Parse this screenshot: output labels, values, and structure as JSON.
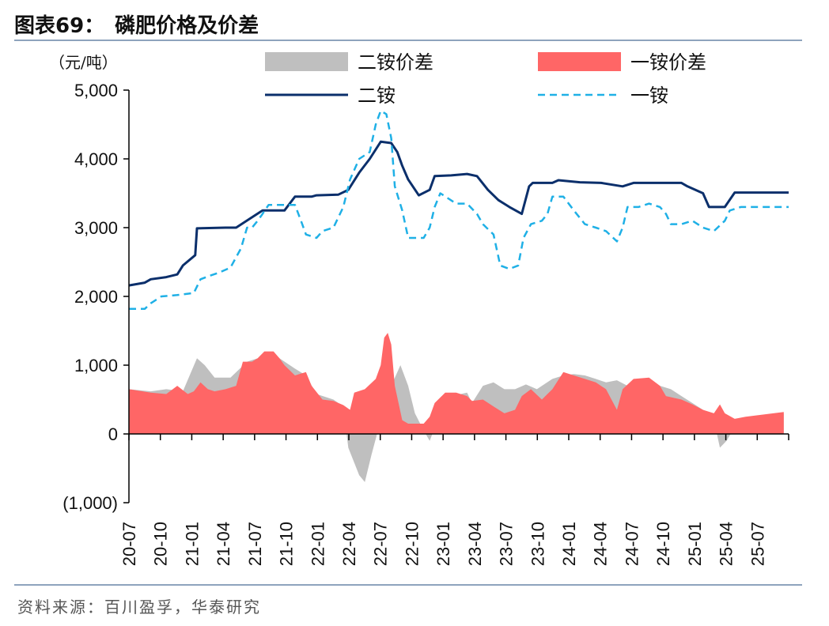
{
  "figure": {
    "title": "图表69：　磷肥价格及价差",
    "source": "资料来源：百川盈孚，华泰研究"
  },
  "chart_data": {
    "type": "line",
    "ylabel": "（元/吨）",
    "ylim": [
      -1000,
      5000
    ],
    "yticks": [
      5000,
      4000,
      3000,
      2000,
      1000,
      0,
      -1000
    ],
    "ytick_labels": [
      "5,000",
      "4,000",
      "3,000",
      "2,000",
      "1,000",
      "0",
      "(1,000)"
    ],
    "x_tick_labels": [
      "20-07",
      "20-10",
      "21-01",
      "21-04",
      "21-07",
      "21-10",
      "22-01",
      "22-04",
      "22-07",
      "22-10",
      "23-01",
      "23-04",
      "23-07",
      "23-10",
      "24-01",
      "24-04",
      "24-07",
      "24-10",
      "25-01",
      "25-04",
      "25-07"
    ],
    "x_start": "2020-07-01",
    "x_end": "2025-08-15",
    "legend_position": "top",
    "series": [
      {
        "name": "二铵价差",
        "kind": "area",
        "color": "#bfbfbf",
        "points": [
          [
            "2020-07-01",
            650
          ],
          [
            "2020-09-01",
            620
          ],
          [
            "2020-10-15",
            650
          ],
          [
            "2020-12-01",
            620
          ],
          [
            "2021-01-10",
            1100
          ],
          [
            "2021-02-01",
            1000
          ],
          [
            "2021-03-01",
            820
          ],
          [
            "2021-04-15",
            820
          ],
          [
            "2021-06-01",
            1050
          ],
          [
            "2021-08-01",
            1150
          ],
          [
            "2021-09-01",
            1100
          ],
          [
            "2021-10-15",
            950
          ],
          [
            "2021-11-15",
            850
          ],
          [
            "2021-12-15",
            580
          ],
          [
            "2022-02-01",
            500
          ],
          [
            "2022-03-01",
            400
          ],
          [
            "2022-03-15",
            -200
          ],
          [
            "2022-04-15",
            -600
          ],
          [
            "2022-05-01",
            -700
          ],
          [
            "2022-05-20",
            -300
          ],
          [
            "2022-06-15",
            200
          ],
          [
            "2022-07-15",
            700
          ],
          [
            "2022-08-10",
            1000
          ],
          [
            "2022-09-01",
            700
          ],
          [
            "2022-09-20",
            300
          ],
          [
            "2022-10-15",
            50
          ],
          [
            "2022-11-01",
            -100
          ],
          [
            "2022-12-01",
            300
          ],
          [
            "2023-01-01",
            550
          ],
          [
            "2023-02-15",
            600
          ],
          [
            "2023-03-01",
            450
          ],
          [
            "2023-04-01",
            700
          ],
          [
            "2023-05-01",
            750
          ],
          [
            "2023-06-01",
            650
          ],
          [
            "2023-07-01",
            650
          ],
          [
            "2023-08-01",
            720
          ],
          [
            "2023-09-01",
            650
          ],
          [
            "2023-10-15",
            800
          ],
          [
            "2023-11-15",
            850
          ],
          [
            "2023-12-15",
            870
          ],
          [
            "2024-01-15",
            850
          ],
          [
            "2024-02-15",
            800
          ],
          [
            "2024-03-15",
            750
          ],
          [
            "2024-04-15",
            780
          ],
          [
            "2024-05-15",
            700
          ],
          [
            "2024-07-01",
            780
          ],
          [
            "2024-08-15",
            700
          ],
          [
            "2024-09-15",
            650
          ],
          [
            "2024-10-15",
            550
          ],
          [
            "2024-11-15",
            450
          ],
          [
            "2024-12-15",
            350
          ],
          [
            "2025-01-15",
            200
          ],
          [
            "2025-02-01",
            -200
          ],
          [
            "2025-02-20",
            -100
          ],
          [
            "2025-03-15",
            100
          ],
          [
            "2025-04-15",
            150
          ],
          [
            "2025-06-01",
            250
          ],
          [
            "2025-08-01",
            300
          ]
        ]
      },
      {
        "name": "一铵价差",
        "kind": "area",
        "color": "#ff6666",
        "points": [
          [
            "2020-07-01",
            650
          ],
          [
            "2020-09-01",
            600
          ],
          [
            "2020-10-15",
            580
          ],
          [
            "2020-11-15",
            700
          ],
          [
            "2020-12-15",
            580
          ],
          [
            "2021-01-01",
            620
          ],
          [
            "2021-01-20",
            750
          ],
          [
            "2021-02-10",
            650
          ],
          [
            "2021-03-01",
            620
          ],
          [
            "2021-04-01",
            650
          ],
          [
            "2021-05-01",
            700
          ],
          [
            "2021-05-20",
            1050
          ],
          [
            "2021-06-15",
            1050
          ],
          [
            "2021-07-01",
            1100
          ],
          [
            "2021-07-20",
            1200
          ],
          [
            "2021-08-15",
            1200
          ],
          [
            "2021-09-01",
            1100
          ],
          [
            "2021-09-15",
            1000
          ],
          [
            "2021-10-15",
            850
          ],
          [
            "2021-11-15",
            900
          ],
          [
            "2021-12-01",
            700
          ],
          [
            "2022-01-01",
            500
          ],
          [
            "2022-02-01",
            480
          ],
          [
            "2022-03-01",
            420
          ],
          [
            "2022-03-20",
            350
          ],
          [
            "2022-04-01",
            600
          ],
          [
            "2022-05-01",
            650
          ],
          [
            "2022-06-01",
            800
          ],
          [
            "2022-06-15",
            1000
          ],
          [
            "2022-06-25",
            1400
          ],
          [
            "2022-07-05",
            1470
          ],
          [
            "2022-07-15",
            1300
          ],
          [
            "2022-07-25",
            700
          ],
          [
            "2022-08-15",
            200
          ],
          [
            "2022-09-01",
            150
          ],
          [
            "2022-10-15",
            150
          ],
          [
            "2022-11-01",
            250
          ],
          [
            "2022-11-15",
            450
          ],
          [
            "2022-12-15",
            600
          ],
          [
            "2023-01-15",
            600
          ],
          [
            "2023-02-15",
            550
          ],
          [
            "2023-03-01",
            480
          ],
          [
            "2023-04-01",
            500
          ],
          [
            "2023-05-01",
            400
          ],
          [
            "2023-06-01",
            300
          ],
          [
            "2023-07-01",
            350
          ],
          [
            "2023-07-20",
            550
          ],
          [
            "2023-08-15",
            650
          ],
          [
            "2023-09-15",
            500
          ],
          [
            "2023-10-15",
            650
          ],
          [
            "2023-11-15",
            900
          ],
          [
            "2023-12-15",
            850
          ],
          [
            "2024-01-15",
            800
          ],
          [
            "2024-02-15",
            750
          ],
          [
            "2024-03-15",
            650
          ],
          [
            "2024-04-15",
            350
          ],
          [
            "2024-05-01",
            650
          ],
          [
            "2024-06-01",
            800
          ],
          [
            "2024-07-15",
            820
          ],
          [
            "2024-08-15",
            700
          ],
          [
            "2024-09-01",
            550
          ],
          [
            "2024-10-15",
            500
          ],
          [
            "2024-11-15",
            430
          ],
          [
            "2024-12-15",
            350
          ],
          [
            "2025-01-15",
            300
          ],
          [
            "2025-02-01",
            430
          ],
          [
            "2025-02-15",
            300
          ],
          [
            "2025-03-15",
            220
          ],
          [
            "2025-04-15",
            250
          ],
          [
            "2025-06-01",
            280
          ],
          [
            "2025-08-01",
            320
          ]
        ]
      },
      {
        "name": "二铵",
        "kind": "line",
        "color": "#0b2f6b",
        "points": [
          [
            "2020-07-01",
            2160
          ],
          [
            "2020-08-15",
            2200
          ],
          [
            "2020-09-01",
            2250
          ],
          [
            "2020-10-15",
            2280
          ],
          [
            "2020-11-15",
            2320
          ],
          [
            "2020-12-01",
            2450
          ],
          [
            "2021-01-05",
            2600
          ],
          [
            "2021-01-10",
            2990
          ],
          [
            "2021-04-01",
            3000
          ],
          [
            "2021-05-01",
            3000
          ],
          [
            "2021-06-15",
            3150
          ],
          [
            "2021-07-15",
            3250
          ],
          [
            "2021-09-15",
            3250
          ],
          [
            "2021-10-15",
            3450
          ],
          [
            "2021-12-01",
            3450
          ],
          [
            "2021-12-15",
            3470
          ],
          [
            "2022-02-15",
            3480
          ],
          [
            "2022-03-15",
            3550
          ],
          [
            "2022-04-15",
            3800
          ],
          [
            "2022-05-15",
            4000
          ],
          [
            "2022-06-15",
            4250
          ],
          [
            "2022-07-15",
            4230
          ],
          [
            "2022-08-01",
            4100
          ],
          [
            "2022-08-15",
            3900
          ],
          [
            "2022-09-01",
            3700
          ],
          [
            "2022-10-01",
            3470
          ],
          [
            "2022-11-01",
            3550
          ],
          [
            "2022-11-15",
            3750
          ],
          [
            "2023-01-01",
            3760
          ],
          [
            "2023-02-15",
            3780
          ],
          [
            "2023-03-15",
            3750
          ],
          [
            "2023-04-15",
            3550
          ],
          [
            "2023-05-15",
            3400
          ],
          [
            "2023-06-15",
            3300
          ],
          [
            "2023-07-20",
            3200
          ],
          [
            "2023-08-10",
            3600
          ],
          [
            "2023-08-20",
            3650
          ],
          [
            "2023-10-15",
            3650
          ],
          [
            "2023-11-01",
            3690
          ],
          [
            "2024-01-01",
            3660
          ],
          [
            "2024-03-01",
            3650
          ],
          [
            "2024-05-01",
            3600
          ],
          [
            "2024-06-01",
            3650
          ],
          [
            "2024-09-01",
            3650
          ],
          [
            "2024-10-15",
            3650
          ],
          [
            "2024-11-01",
            3600
          ],
          [
            "2024-12-15",
            3500
          ],
          [
            "2025-01-01",
            3300
          ],
          [
            "2025-02-15",
            3300
          ],
          [
            "2025-03-15",
            3510
          ],
          [
            "2025-08-15",
            3510
          ]
        ]
      },
      {
        "name": "一铵",
        "kind": "line",
        "color": "#1fb0e6",
        "points": [
          [
            "2020-07-01",
            1820
          ],
          [
            "2020-08-15",
            1820
          ],
          [
            "2020-09-01",
            1900
          ],
          [
            "2020-10-01",
            2000
          ],
          [
            "2020-11-15",
            2020
          ],
          [
            "2021-01-01",
            2050
          ],
          [
            "2021-01-20",
            2250
          ],
          [
            "2021-02-15",
            2300
          ],
          [
            "2021-03-15",
            2350
          ],
          [
            "2021-04-15",
            2420
          ],
          [
            "2021-05-15",
            2700
          ],
          [
            "2021-06-01",
            3000
          ],
          [
            "2021-06-15",
            3000
          ],
          [
            "2021-07-01",
            3100
          ],
          [
            "2021-07-15",
            3200
          ],
          [
            "2021-08-01",
            3330
          ],
          [
            "2021-09-15",
            3330
          ],
          [
            "2021-10-15",
            3330
          ],
          [
            "2021-11-01",
            3100
          ],
          [
            "2021-11-15",
            2900
          ],
          [
            "2021-12-15",
            2850
          ],
          [
            "2022-01-01",
            2950
          ],
          [
            "2022-02-01",
            3000
          ],
          [
            "2022-03-01",
            3300
          ],
          [
            "2022-03-20",
            3700
          ],
          [
            "2022-04-15",
            4000
          ],
          [
            "2022-05-15",
            4100
          ],
          [
            "2022-06-01",
            4500
          ],
          [
            "2022-06-15",
            4700
          ],
          [
            "2022-07-01",
            4650
          ],
          [
            "2022-07-15",
            4300
          ],
          [
            "2022-07-25",
            3600
          ],
          [
            "2022-08-15",
            3250
          ],
          [
            "2022-09-01",
            2850
          ],
          [
            "2022-10-15",
            2850
          ],
          [
            "2022-11-01",
            3000
          ],
          [
            "2022-11-15",
            3300
          ],
          [
            "2022-12-01",
            3500
          ],
          [
            "2023-01-15",
            3350
          ],
          [
            "2023-02-15",
            3350
          ],
          [
            "2023-03-15",
            3200
          ],
          [
            "2023-04-01",
            3050
          ],
          [
            "2023-05-01",
            2900
          ],
          [
            "2023-05-20",
            2450
          ],
          [
            "2023-06-15",
            2400
          ],
          [
            "2023-07-10",
            2450
          ],
          [
            "2023-07-25",
            2850
          ],
          [
            "2023-08-15",
            3050
          ],
          [
            "2023-09-15",
            3100
          ],
          [
            "2023-10-01",
            3200
          ],
          [
            "2023-10-15",
            3450
          ],
          [
            "2023-11-15",
            3450
          ],
          [
            "2023-12-15",
            3250
          ],
          [
            "2024-01-15",
            3050
          ],
          [
            "2024-02-15",
            3000
          ],
          [
            "2024-03-15",
            2950
          ],
          [
            "2024-04-15",
            2800
          ],
          [
            "2024-05-01",
            3000
          ],
          [
            "2024-05-15",
            3300
          ],
          [
            "2024-06-15",
            3300
          ],
          [
            "2024-07-15",
            3350
          ],
          [
            "2024-08-15",
            3300
          ],
          [
            "2024-09-01",
            3200
          ],
          [
            "2024-09-15",
            3050
          ],
          [
            "2024-10-15",
            3050
          ],
          [
            "2024-11-15",
            3100
          ],
          [
            "2024-12-15",
            3000
          ],
          [
            "2025-01-15",
            2950
          ],
          [
            "2025-02-15",
            3100
          ],
          [
            "2025-03-01",
            3250
          ],
          [
            "2025-04-01",
            3300
          ],
          [
            "2025-08-15",
            3300
          ]
        ]
      }
    ]
  }
}
